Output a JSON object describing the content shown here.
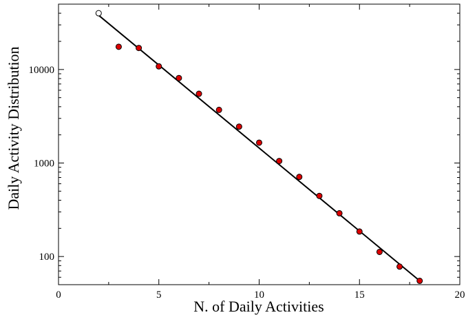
{
  "chart_data": {
    "type": "scatter",
    "title": "",
    "xlabel": "N. of Daily Activities",
    "ylabel": "Daily Activity Distribution",
    "xlim": [
      0,
      20
    ],
    "ylim": [
      50,
      50000
    ],
    "yscale": "log",
    "grid": false,
    "x_ticks": [
      0,
      5,
      10,
      15,
      20
    ],
    "x_tick_labels": [
      "0",
      "5",
      "10",
      "15",
      "20"
    ],
    "y_ticks": [
      100,
      1000,
      10000
    ],
    "y_tick_labels": [
      "100",
      "1000",
      "10000"
    ],
    "series": [
      {
        "marker": "open-circle",
        "color": "#ffffff",
        "x": [
          2
        ],
        "y": [
          40000
        ]
      },
      {
        "marker": "filled-circle",
        "color": "#dd0000",
        "x": [
          3,
          4,
          5,
          6,
          7,
          8,
          9,
          10,
          11,
          12,
          13,
          14,
          15,
          16,
          17,
          18
        ],
        "y": [
          17500,
          17000,
          10800,
          8100,
          5500,
          3700,
          2450,
          1650,
          1050,
          710,
          445,
          290,
          185,
          112,
          78,
          55
        ]
      }
    ],
    "fit_line": {
      "color": "#000000",
      "x": [
        2,
        18
      ],
      "y": [
        38000,
        55
      ]
    }
  }
}
